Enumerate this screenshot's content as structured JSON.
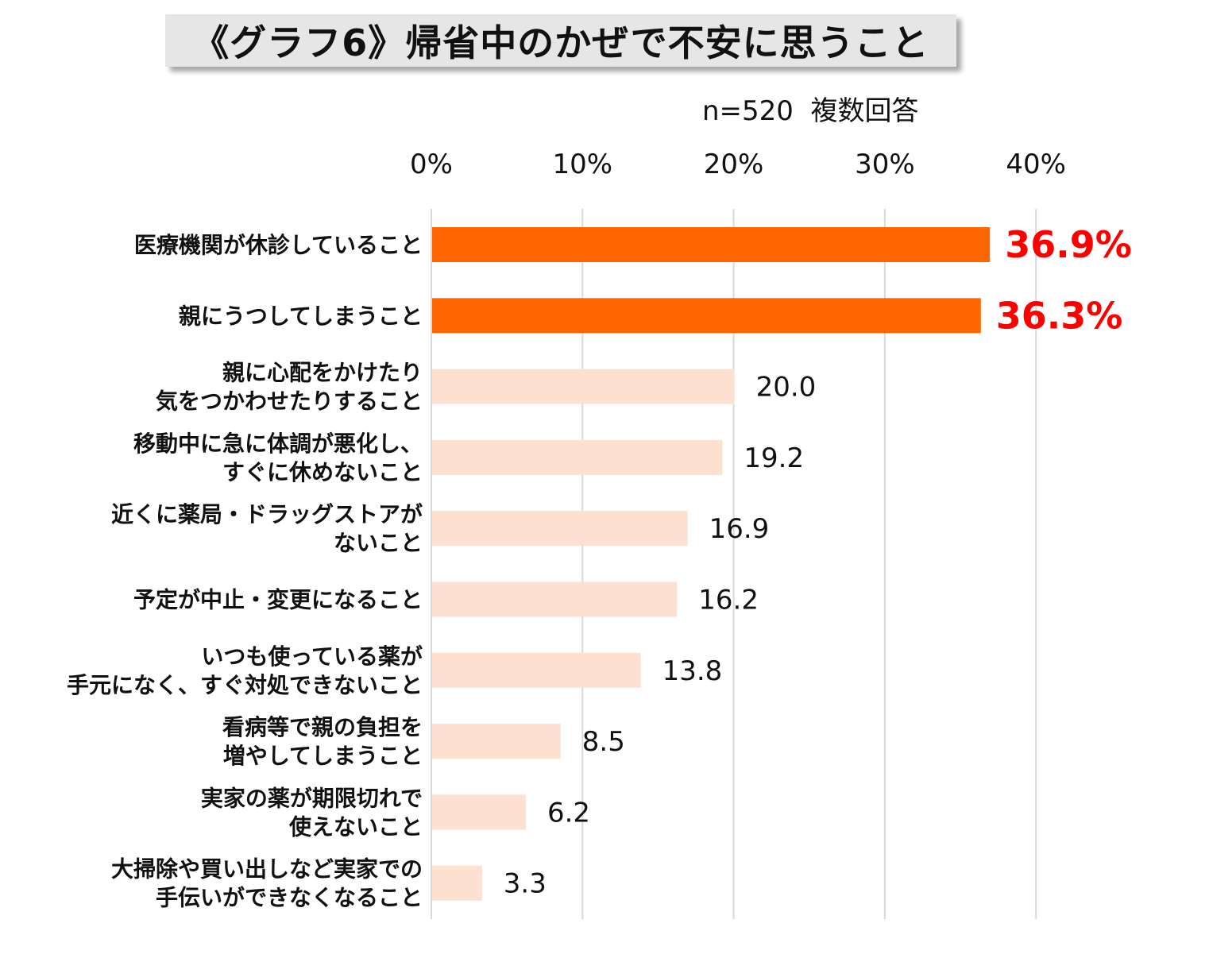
{
  "title": "《グラフ6》帰省中のかぜで不安に思うこと",
  "subtitle": "n=520  複数回答",
  "colors": {
    "highlight": "#ff6600",
    "normal": "#fde0cf",
    "highlight_label": "#ff0000",
    "grid": "#d9d9d9"
  },
  "chart_data": {
    "type": "bar",
    "orientation": "horizontal",
    "title": "《グラフ6》帰省中のかぜで不安に思うこと",
    "note": "n=520  複数回答",
    "xlim": [
      0,
      40
    ],
    "xticks": [
      "0%",
      "10%",
      "20%",
      "30%",
      "40%"
    ],
    "grid": true,
    "categories": [
      [
        "医療機関が休診していること"
      ],
      [
        "親にうつしてしまうこと"
      ],
      [
        "親に心配をかけたり",
        "気をつかわせたりすること"
      ],
      [
        "移動中に急に体調が悪化し、",
        "すぐに休めないこと"
      ],
      [
        "近くに薬局・ドラッグストアが",
        "ないこと"
      ],
      [
        "予定が中止・変更になること"
      ],
      [
        "いつも使っている薬が",
        "手元になく、すぐ対処できないこと"
      ],
      [
        "看病等で親の負担を",
        "増やしてしまうこと"
      ],
      [
        "実家の薬が期限切れで",
        "使えないこと"
      ],
      [
        "大掃除や買い出しなど実家での",
        "手伝いができなくなること"
      ]
    ],
    "values": [
      36.9,
      36.3,
      20.0,
      19.2,
      16.9,
      16.2,
      13.8,
      8.5,
      6.2,
      3.3
    ],
    "value_labels": [
      "36.9%",
      "36.3%",
      "20.0",
      "19.2",
      "16.9",
      "16.2",
      "13.8",
      "8.5",
      "6.2",
      "3.3"
    ],
    "highlighted": [
      true,
      true,
      false,
      false,
      false,
      false,
      false,
      false,
      false,
      false
    ]
  }
}
